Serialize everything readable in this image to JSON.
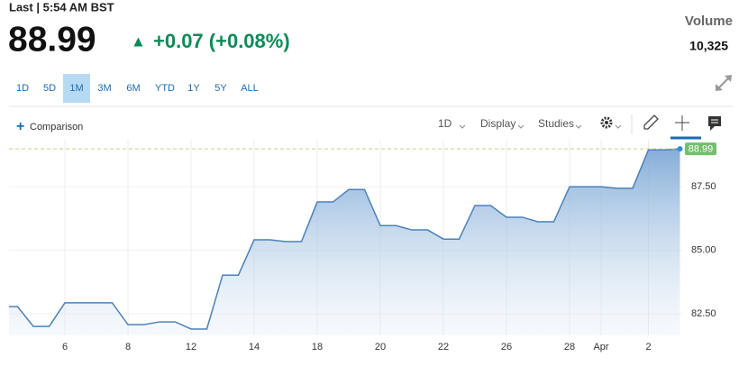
{
  "header": {
    "last": "Last | 5:54 AM BST",
    "price": "88.99",
    "change": "+0.07 (+0.08%)",
    "volume_label": "Volume",
    "volume": "10,325"
  },
  "ranges": [
    "1D",
    "5D",
    "1M",
    "3M",
    "6M",
    "YTD",
    "1Y",
    "5Y",
    "ALL"
  ],
  "selected_range": 2,
  "toolbar": {
    "comparison": "Comparison",
    "interval": "1D",
    "display": "Display",
    "studies": "Studies"
  },
  "chart_data": {
    "type": "area",
    "color": "#4b81b9",
    "grid": true,
    "categories": [
      null,
      null,
      null,
      null,
      "6",
      null,
      null,
      null,
      "8",
      null,
      null,
      null,
      "12",
      null,
      null,
      null,
      "14",
      null,
      null,
      null,
      "18",
      null,
      null,
      null,
      "20",
      null,
      null,
      null,
      "22",
      null,
      null,
      null,
      "26",
      null,
      null,
      null,
      "28",
      null,
      "Apr",
      null,
      null,
      "2",
      null,
      null
    ],
    "values": [
      82.78,
      82.78,
      82.0,
      82.0,
      82.93,
      82.93,
      82.93,
      82.93,
      82.07,
      82.07,
      82.18,
      82.18,
      81.9,
      81.9,
      84.02,
      84.02,
      85.41,
      85.41,
      85.34,
      85.34,
      86.9,
      86.9,
      87.39,
      87.39,
      85.97,
      85.97,
      85.8,
      85.8,
      85.44,
      85.44,
      86.76,
      86.76,
      86.3,
      86.3,
      86.12,
      86.12,
      87.5,
      87.5,
      87.5,
      87.44,
      87.44,
      88.95,
      88.95,
      88.99
    ],
    "ylim": [
      81.65,
      89.35
    ],
    "yticks": [
      {
        "value": 82.5,
        "label": "82.50"
      },
      {
        "value": 85,
        "label": "85.00"
      },
      {
        "value": 87.5,
        "label": "87.50"
      }
    ]
  }
}
